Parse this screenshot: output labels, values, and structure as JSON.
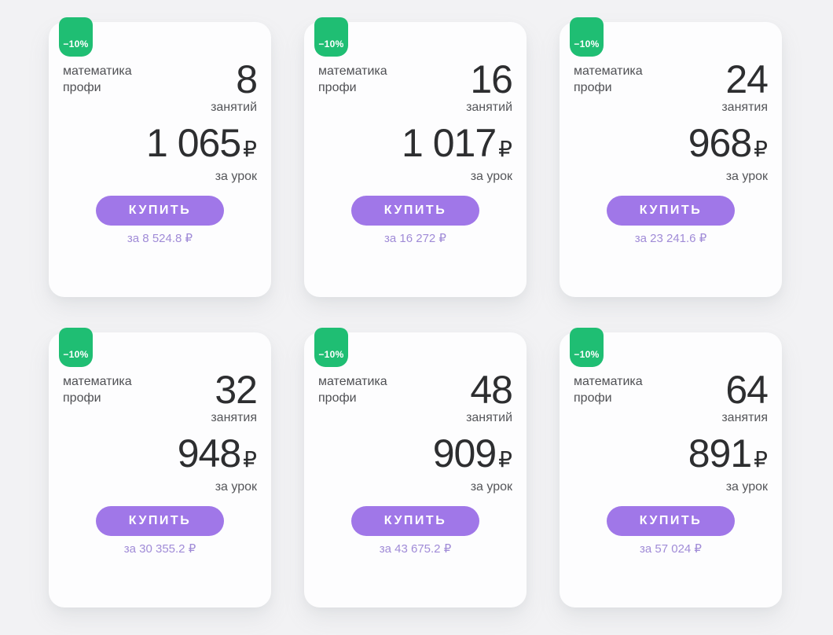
{
  "page": {
    "background_color": "#f2f2f4",
    "card_color": "#fdfdfe"
  },
  "colors": {
    "discount_badge_green": "#1fbe73",
    "buy_button_purple": "#a077e8",
    "total_text_purple": "#a08bd7",
    "number_dark": "#2d2e30",
    "label_gray": "#55565a"
  },
  "cards": [
    {
      "discount": "−10%",
      "subject": "математика профи",
      "count": "8",
      "count_label": "занятий",
      "price": "1 065",
      "currency": "₽",
      "price_label": "за урок",
      "buy_label": "КУПИТЬ",
      "total": "за 8 524.8 ₽"
    },
    {
      "discount": "−10%",
      "subject": "математика профи",
      "count": "16",
      "count_label": "занятий",
      "price": "1 017",
      "currency": "₽",
      "price_label": "за урок",
      "buy_label": "КУПИТЬ",
      "total": "за 16 272 ₽"
    },
    {
      "discount": "−10%",
      "subject": "математика профи",
      "count": "24",
      "count_label": "занятия",
      "price": "968",
      "currency": "₽",
      "price_label": "за урок",
      "buy_label": "КУПИТЬ",
      "total": "за 23 241.6 ₽"
    },
    {
      "discount": "−10%",
      "subject": "математика профи",
      "count": "32",
      "count_label": "занятия",
      "price": "948",
      "currency": "₽",
      "price_label": "за урок",
      "buy_label": "КУПИТЬ",
      "total": "за 30 355.2 ₽"
    },
    {
      "discount": "−10%",
      "subject": "математика профи",
      "count": "48",
      "count_label": "занятий",
      "price": "909",
      "currency": "₽",
      "price_label": "за урок",
      "buy_label": "КУПИТЬ",
      "total": "за 43 675.2 ₽"
    },
    {
      "discount": "−10%",
      "subject": "математика профи",
      "count": "64",
      "count_label": "занятия",
      "price": "891",
      "currency": "₽",
      "price_label": "за урок",
      "buy_label": "КУПИТЬ",
      "total": "за 57 024 ₽"
    }
  ]
}
